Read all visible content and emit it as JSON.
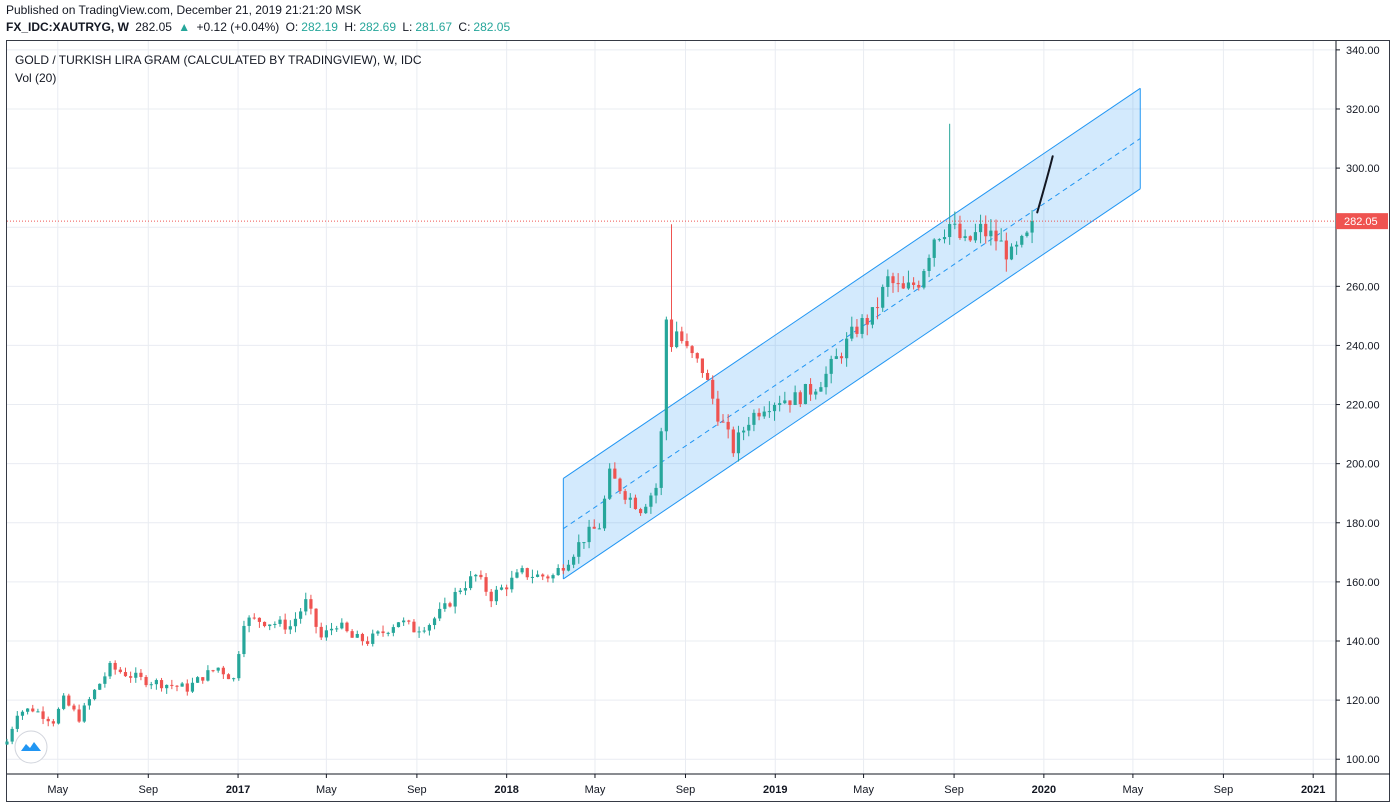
{
  "header": {
    "published": "Published on TradingView.com, December 21, 2019 21:21:20 MSK",
    "symbol": "FX_IDC:XAUTRYG, W",
    "last": "282.05",
    "change": "+0.12 (+0.04%)",
    "o_label": "O:",
    "o_value": "282.19",
    "h_label": "H:",
    "h_value": "282.69",
    "l_label": "L:",
    "l_value": "281.67",
    "c_label": "C:",
    "c_value": "282.05"
  },
  "legend": {
    "title": "GOLD / TURKISH LIRA GRAM (CALCULATED BY TRADINGVIEW), W, IDC",
    "volume": "Vol (20)"
  },
  "icons": {
    "logo": "tradingview-cloud-icon",
    "change_arrow": "triangle-up-icon"
  },
  "colors": {
    "up": "#26a69a",
    "down": "#ef5350",
    "channel": "#2196f3",
    "channel_fill": "#2196f3",
    "price_line": "#ef5350",
    "grid": "#e9ecf2"
  },
  "chart_data": {
    "type": "candlestick",
    "timeframe": "W",
    "ylim": [
      95,
      343
    ],
    "yticks": [
      100,
      120,
      140,
      160,
      180,
      200,
      220,
      240,
      260,
      280,
      300,
      320,
      340
    ],
    "ytick_labels": [
      "100.00",
      "120.00",
      "140.00",
      "160.00",
      "180.00",
      "200.00",
      "220.00",
      "240.00",
      "260.00",
      "",
      "300.00",
      "320.00",
      "340.00"
    ],
    "xlim": [
      "2016-02-22",
      "2021-02-01"
    ],
    "xticks": [
      {
        "date": "2016-05-01",
        "label": "May"
      },
      {
        "date": "2016-09-01",
        "label": "Sep"
      },
      {
        "date": "2017-01-01",
        "label": "2017"
      },
      {
        "date": "2017-05-01",
        "label": "May"
      },
      {
        "date": "2017-09-01",
        "label": "Sep"
      },
      {
        "date": "2018-01-01",
        "label": "2018"
      },
      {
        "date": "2018-05-01",
        "label": "May"
      },
      {
        "date": "2018-09-01",
        "label": "Sep"
      },
      {
        "date": "2019-01-01",
        "label": "2019"
      },
      {
        "date": "2019-05-01",
        "label": "May"
      },
      {
        "date": "2019-09-01",
        "label": "Sep"
      },
      {
        "date": "2020-01-01",
        "label": "2020"
      },
      {
        "date": "2020-05-01",
        "label": "May"
      },
      {
        "date": "2020-09-01",
        "label": "Sep"
      },
      {
        "date": "2021-01-01",
        "label": "2021"
      }
    ],
    "close_path": [
      [
        "2016-02-22",
        106
      ],
      [
        "2016-03-07",
        116
      ],
      [
        "2016-03-28",
        117
      ],
      [
        "2016-04-25",
        113
      ],
      [
        "2016-05-09",
        120
      ],
      [
        "2016-05-30",
        114
      ],
      [
        "2016-06-20",
        123
      ],
      [
        "2016-07-11",
        131
      ],
      [
        "2016-08-01",
        129
      ],
      [
        "2016-08-22",
        127
      ],
      [
        "2016-09-12",
        126
      ],
      [
        "2016-10-03",
        125
      ],
      [
        "2016-10-24",
        124
      ],
      [
        "2016-11-14",
        128
      ],
      [
        "2016-12-05",
        131
      ],
      [
        "2016-12-26",
        127
      ],
      [
        "2017-01-09",
        147
      ],
      [
        "2017-01-30",
        147
      ],
      [
        "2017-02-20",
        146
      ],
      [
        "2017-03-13",
        145
      ],
      [
        "2017-04-03",
        153
      ],
      [
        "2017-04-24",
        141
      ],
      [
        "2017-05-15",
        146
      ],
      [
        "2017-06-05",
        141
      ],
      [
        "2017-06-26",
        140
      ],
      [
        "2017-07-17",
        143
      ],
      [
        "2017-08-07",
        147
      ],
      [
        "2017-08-28",
        144
      ],
      [
        "2017-09-18",
        146
      ],
      [
        "2017-10-09",
        151
      ],
      [
        "2017-10-30",
        158
      ],
      [
        "2017-11-20",
        162
      ],
      [
        "2017-12-11",
        155
      ],
      [
        "2018-01-01",
        159
      ],
      [
        "2018-01-22",
        163
      ],
      [
        "2018-02-12",
        162
      ],
      [
        "2018-03-05",
        162
      ],
      [
        "2018-03-26",
        168
      ],
      [
        "2018-04-16",
        175
      ],
      [
        "2018-05-07",
        179
      ],
      [
        "2018-05-21",
        196
      ],
      [
        "2018-06-11",
        190
      ],
      [
        "2018-07-02",
        185
      ],
      [
        "2018-07-23",
        192
      ],
      [
        "2018-07-30",
        210
      ],
      [
        "2018-08-06",
        249
      ],
      [
        "2018-08-13",
        241
      ],
      [
        "2018-08-20",
        245
      ],
      [
        "2018-09-03",
        238
      ],
      [
        "2018-09-24",
        232
      ],
      [
        "2018-10-15",
        217
      ],
      [
        "2018-11-05",
        205
      ],
      [
        "2018-11-26",
        215
      ],
      [
        "2018-12-17",
        220
      ],
      [
        "2019-01-07",
        222
      ],
      [
        "2019-01-28",
        222
      ],
      [
        "2019-02-18",
        225
      ],
      [
        "2019-03-11",
        230
      ],
      [
        "2019-04-01",
        238
      ],
      [
        "2019-04-22",
        246
      ],
      [
        "2019-05-13",
        250
      ],
      [
        "2019-06-03",
        262
      ],
      [
        "2019-06-24",
        258
      ],
      [
        "2019-07-15",
        262
      ],
      [
        "2019-08-05",
        277
      ],
      [
        "2019-08-26",
        281
      ],
      [
        "2019-09-16",
        274
      ],
      [
        "2019-10-07",
        279
      ],
      [
        "2019-10-28",
        276
      ],
      [
        "2019-11-18",
        270
      ],
      [
        "2019-12-09",
        276
      ],
      [
        "2019-12-16",
        282.05
      ]
    ],
    "spikes": [
      {
        "date": "2018-08-13",
        "high": 281
      },
      {
        "date": "2019-08-26",
        "high": 315
      }
    ],
    "last_price": 282.05,
    "regression_channel": {
      "start": "2018-03-19",
      "end": "2020-05-11",
      "upper": [
        195,
        327
      ],
      "middle": [
        178,
        310
      ],
      "lower": [
        161,
        293
      ]
    },
    "drawn_curve": [
      [
        "2019-12-23",
        285
      ],
      [
        "2020-01-06",
        297
      ],
      [
        "2020-01-13",
        304
      ]
    ]
  }
}
